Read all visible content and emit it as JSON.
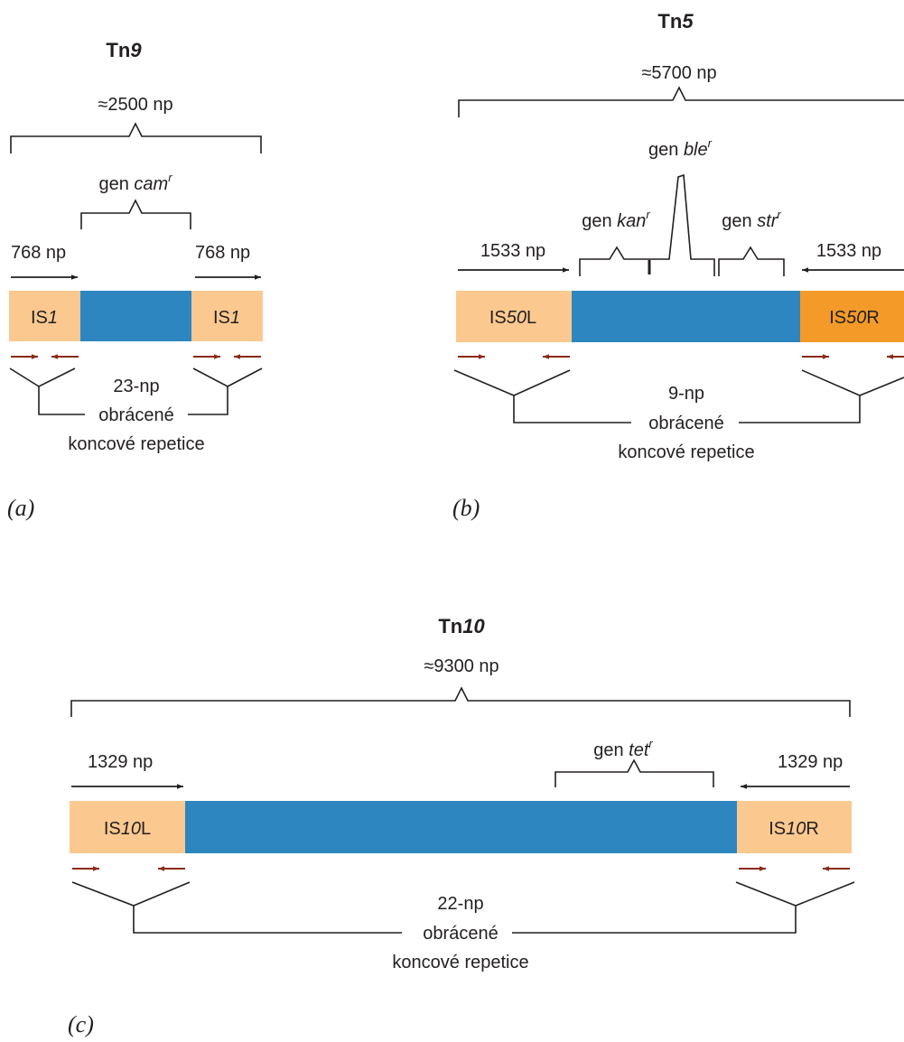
{
  "colors": {
    "gene_body": "#2e86c1",
    "is_element": "#fbc98f",
    "is_element_dark": "#f39a28",
    "repeat_arrow": "#8b2a16",
    "line": "#231f20"
  },
  "panel_a": {
    "title_prefix": "Tn",
    "title_number": "9",
    "total_length": "≈2500 np",
    "gene_prefix": "gen ",
    "gene_name": "cam",
    "gene_sup": "r",
    "left_is_length": "768 np",
    "right_is_length": "768 np",
    "left_is_label_prefix": "IS",
    "left_is_label_number": "1",
    "right_is_label_prefix": "IS",
    "right_is_label_number": "1",
    "repeat_line1": "23-np",
    "repeat_line2": "obrácené",
    "repeat_line3": "koncové repetice",
    "panel_label": "(a)"
  },
  "panel_b": {
    "title_prefix": "Tn",
    "title_number": "5",
    "total_length": "≈5700 np",
    "gene1_prefix": "gen ",
    "gene1_name": "kan",
    "gene1_sup": "r",
    "gene2_prefix": "gen ",
    "gene2_name": "ble",
    "gene2_sup": "r",
    "gene3_prefix": "gen ",
    "gene3_name": "str",
    "gene3_sup": "r",
    "left_is_length": "1533 np",
    "right_is_length": "1533 np",
    "left_is_label_prefix": "IS",
    "left_is_label_number": "50",
    "left_is_label_suffix": "L",
    "right_is_label_prefix": "IS",
    "right_is_label_number": "50",
    "right_is_label_suffix": "R",
    "repeat_line1": "9-np",
    "repeat_line2": "obrácené",
    "repeat_line3": "koncové repetice",
    "panel_label": "(b)"
  },
  "panel_c": {
    "title_prefix": "Tn",
    "title_number": "10",
    "total_length": "≈9300 np",
    "gene_prefix": "gen ",
    "gene_name": "tet",
    "gene_sup": "r",
    "left_is_length": "1329 np",
    "right_is_length": "1329 np",
    "left_is_label_prefix": "IS",
    "left_is_label_number": "10",
    "left_is_label_suffix": "L",
    "right_is_label_prefix": "IS",
    "right_is_label_number": "10",
    "right_is_label_suffix": "R",
    "repeat_line1": "22-np",
    "repeat_line2": "obrácené",
    "repeat_line3": "koncové repetice",
    "panel_label": "(c)"
  }
}
